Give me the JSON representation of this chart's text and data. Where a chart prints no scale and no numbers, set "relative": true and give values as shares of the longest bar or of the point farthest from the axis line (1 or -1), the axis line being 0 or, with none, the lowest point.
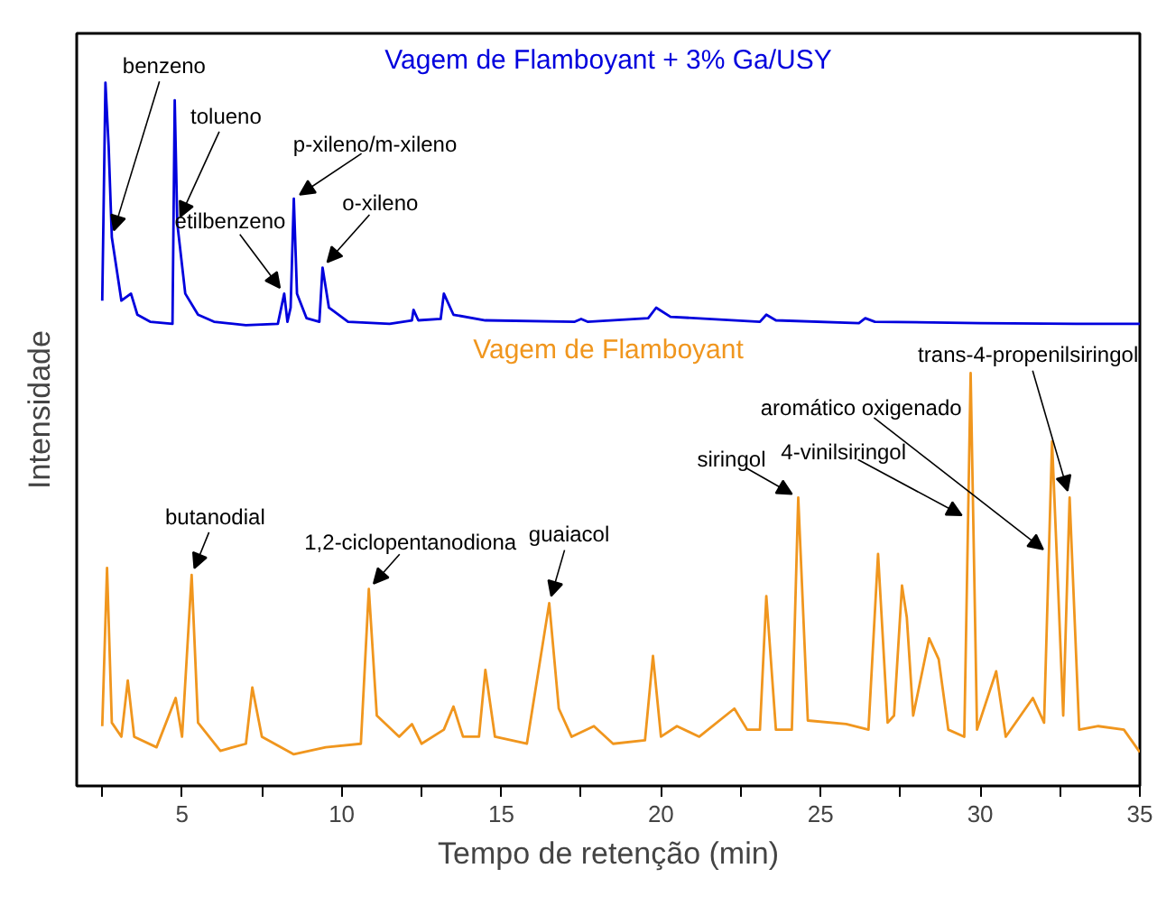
{
  "chart_data": {
    "type": "line",
    "relative": true,
    "xlabel": "Tempo de retenção (min)",
    "ylabel": "Intensidade",
    "xlim": [
      1.7,
      35
    ],
    "xticks": [
      {
        "value": 2.5,
        "label": null
      },
      5,
      {
        "value": 7.5,
        "label": null
      },
      10,
      {
        "value": 12.5,
        "label": null
      },
      15,
      {
        "value": 17.5,
        "label": null
      },
      20,
      {
        "value": 22.5,
        "label": null
      },
      25,
      {
        "value": 27.5,
        "label": null
      },
      30,
      {
        "value": 32.5,
        "label": null
      },
      35
    ],
    "grid": false,
    "series": [
      {
        "name": "Vagem de Flamboyant + 3% Ga/USY",
        "color": "#0000dd",
        "x": [
          2.5,
          2.6,
          2.7,
          2.8,
          3.1,
          3.4,
          3.6,
          4.0,
          4.7,
          4.77,
          4.85,
          5.1,
          5.5,
          6.0,
          7.0,
          8.0,
          8.2,
          8.3,
          8.4,
          8.5,
          8.6,
          8.9,
          9.3,
          9.4,
          9.6,
          10.2,
          11.5,
          12.2,
          12.25,
          12.4,
          13.1,
          13.2,
          13.5,
          14.5,
          17.3,
          17.5,
          17.7,
          19.6,
          19.85,
          20.3,
          23.1,
          23.3,
          23.6,
          26.2,
          26.4,
          26.7,
          30,
          33,
          35
        ],
        "values": [
          0.69,
          1.0,
          0.91,
          0.78,
          0.69,
          0.7,
          0.67,
          0.66,
          0.657,
          0.975,
          0.8,
          0.7,
          0.67,
          0.66,
          0.655,
          0.657,
          0.7,
          0.66,
          0.68,
          0.835,
          0.7,
          0.665,
          0.66,
          0.737,
          0.68,
          0.66,
          0.657,
          0.662,
          0.677,
          0.662,
          0.664,
          0.7,
          0.67,
          0.662,
          0.66,
          0.664,
          0.66,
          0.665,
          0.68,
          0.667,
          0.66,
          0.67,
          0.662,
          0.658,
          0.665,
          0.66,
          0.658,
          0.657,
          0.657
        ]
      },
      {
        "name": "Vagem de Flamboyant",
        "color": "#f0961e",
        "x": [
          2.5,
          2.65,
          2.8,
          3.1,
          3.3,
          3.5,
          4.2,
          4.8,
          5.0,
          5.3,
          5.5,
          6.2,
          7.0,
          7.2,
          7.5,
          8.5,
          9.5,
          10.6,
          10.85,
          11.1,
          11.8,
          12.2,
          12.5,
          13.2,
          13.5,
          13.8,
          14.3,
          14.5,
          14.8,
          15.8,
          16.5,
          16.8,
          17.2,
          17.9,
          18.5,
          19.5,
          19.75,
          20.0,
          20.5,
          21.2,
          22.3,
          22.7,
          23.1,
          23.3,
          23.6,
          24.1,
          24.3,
          24.6,
          25.8,
          26.5,
          26.8,
          27.1,
          27.3,
          27.55,
          27.7,
          27.9,
          28.4,
          28.7,
          29.0,
          29.5,
          29.7,
          29.9,
          30.5,
          30.8,
          31.65,
          32.0,
          32.25,
          32.45,
          32.6,
          32.8,
          33.1,
          33.7,
          34.5,
          35
        ],
        "values": [
          0.085,
          0.31,
          0.09,
          0.07,
          0.15,
          0.07,
          0.055,
          0.125,
          0.07,
          0.3,
          0.09,
          0.05,
          0.06,
          0.14,
          0.07,
          0.045,
          0.055,
          0.06,
          0.28,
          0.1,
          0.07,
          0.088,
          0.06,
          0.08,
          0.113,
          0.07,
          0.07,
          0.165,
          0.07,
          0.06,
          0.26,
          0.11,
          0.07,
          0.085,
          0.06,
          0.065,
          0.185,
          0.07,
          0.085,
          0.07,
          0.11,
          0.08,
          0.08,
          0.27,
          0.08,
          0.08,
          0.41,
          0.093,
          0.088,
          0.08,
          0.33,
          0.09,
          0.1,
          0.285,
          0.24,
          0.1,
          0.21,
          0.18,
          0.08,
          0.07,
          0.587,
          0.08,
          0.163,
          0.07,
          0.125,
          0.09,
          0.49,
          0.27,
          0.1,
          0.41,
          0.08,
          0.085,
          0.08,
          0.048
        ]
      }
    ],
    "annotations": [
      {
        "text": "benzeno",
        "x": 2.8,
        "y": 0.78
      },
      {
        "text": "tolueno",
        "x": 4.85,
        "y": 0.8
      },
      {
        "text": "etilbenzeno",
        "x": 8.2,
        "y": 0.7
      },
      {
        "text": "p-xileno/m-xileno",
        "x": 8.5,
        "y": 0.835
      },
      {
        "text": "o-xileno",
        "x": 9.4,
        "y": 0.737
      },
      {
        "text": "butanodial",
        "x": 5.3,
        "y": 0.3
      },
      {
        "text": "1,2-ciclopentanodiona",
        "x": 10.85,
        "y": 0.28
      },
      {
        "text": "guaiacol",
        "x": 16.5,
        "y": 0.26
      },
      {
        "text": "siringol",
        "x": 24.3,
        "y": 0.41
      },
      {
        "text": "4-vinilsiringol",
        "x": 29.62,
        "y": 0.38
      },
      {
        "text": "aromático oxigenado",
        "x": 32.15,
        "y": 0.33
      },
      {
        "text": "trans-4-propenilsiringol",
        "x": 32.8,
        "y": 0.41
      }
    ]
  }
}
